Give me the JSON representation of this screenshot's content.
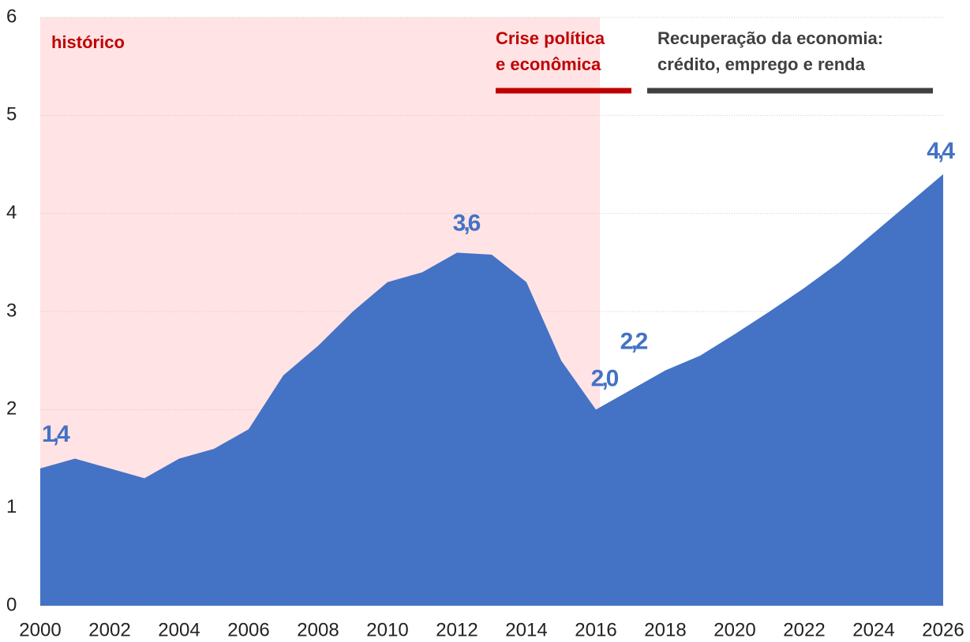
{
  "chart_data": {
    "type": "area",
    "x": [
      2000,
      2001,
      2002,
      2003,
      2004,
      2005,
      2006,
      2007,
      2008,
      2009,
      2010,
      2011,
      2012,
      2013,
      2014,
      2015,
      2016,
      2017,
      2018,
      2019,
      2020,
      2021,
      2022,
      2023,
      2024,
      2025,
      2026
    ],
    "series": [
      {
        "color": "#4472c4",
        "values": [
          1.4,
          1.5,
          1.4,
          1.3,
          1.5,
          1.6,
          1.8,
          2.35,
          2.65,
          3.0,
          3.3,
          3.4,
          3.6,
          3.58,
          3.3,
          2.5,
          2.0,
          2.2,
          2.4,
          2.55,
          2.77,
          3.0,
          3.24,
          3.5,
          3.8,
          4.1,
          4.4
        ],
        "value_labels": [
          "1,4",
          null,
          null,
          null,
          null,
          null,
          null,
          null,
          null,
          null,
          null,
          null,
          "3,6",
          null,
          null,
          null,
          "2,0",
          "2,2",
          null,
          null,
          null,
          null,
          null,
          null,
          null,
          null,
          "4,4"
        ]
      }
    ],
    "xlim": [
      2000,
      2026
    ],
    "xticks": [
      2000,
      2002,
      2004,
      2006,
      2008,
      2010,
      2012,
      2014,
      2016,
      2018,
      2020,
      2022,
      2024,
      2026
    ],
    "ylim": [
      0,
      6
    ],
    "yticks": [
      0,
      1,
      2,
      3,
      4,
      5,
      6
    ],
    "grid": true,
    "highlight_range": [
      2000,
      2016
    ],
    "highlight_color": "#ffe3e5",
    "annotations": [
      {
        "lines": [
          "histórico"
        ],
        "color": "#c00000"
      },
      {
        "lines": [
          "Crise política",
          "e econômica"
        ],
        "color": "#c00000"
      },
      {
        "lines": [
          "Recuperação da economia:",
          "crédito, emprego e renda"
        ],
        "color": "#404040"
      }
    ]
  }
}
